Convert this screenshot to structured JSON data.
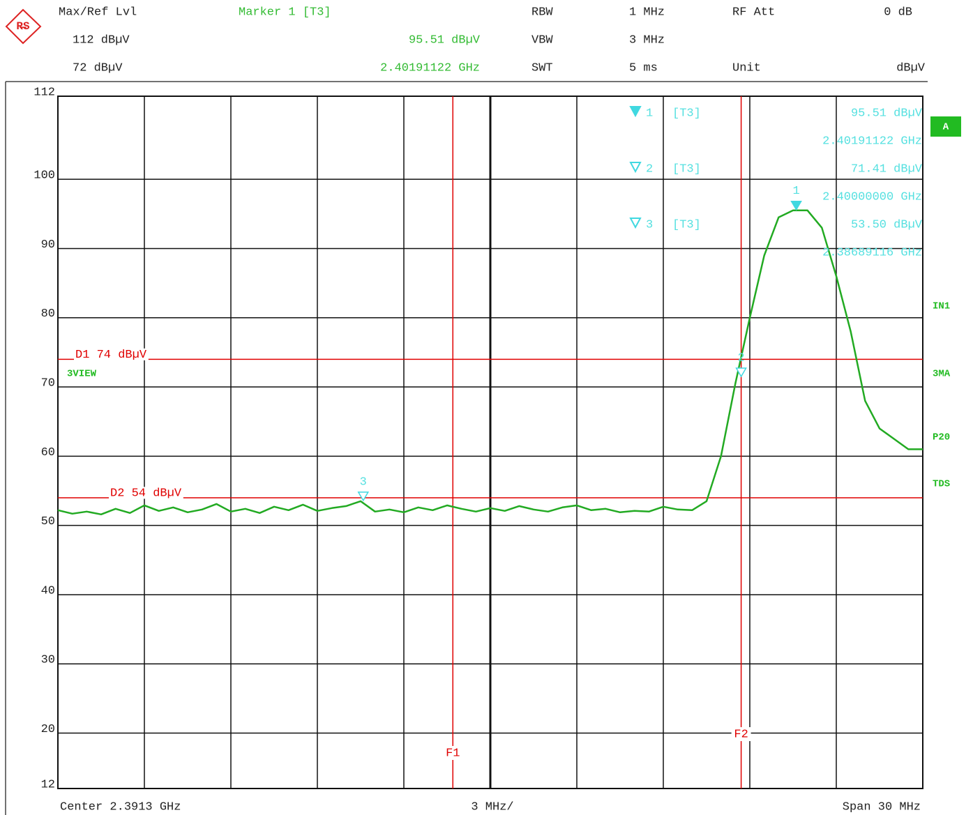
{
  "chart_data": {
    "type": "line",
    "header": {
      "ref_label": "Max/Ref Lvl",
      "marker_title": "Marker 1 [T3]",
      "rbw_label": "RBW",
      "rbw": "1 MHz",
      "att_label": "RF Att",
      "att": "0 dB",
      "ref_level": "112 dBµV",
      "marker_level": "95.51 dBµV",
      "vbw_label": "VBW",
      "vbw": "3 MHz",
      "offset": "72 dBµV",
      "marker_freq": "2.40191122 GHz",
      "swt_label": "SWT",
      "swt": "5 ms",
      "unit_label": "Unit",
      "unit": "dBµV"
    },
    "footer": {
      "center": "Center 2.3913 GHz",
      "div": "3 MHz/",
      "span": "Span 30 MHz"
    },
    "side_labels": [
      "IN1",
      "3MA",
      "P20",
      "TDS"
    ],
    "screen_label": "A",
    "view_label": "3VIEW",
    "x": [
      2.3763,
      2.3768,
      2.3773,
      2.3778,
      2.3783,
      2.3788,
      2.3793,
      2.3798,
      2.3803,
      2.3808,
      2.3813,
      2.3818,
      2.3823,
      2.3828,
      2.3833,
      2.3838,
      2.3843,
      2.3848,
      2.3853,
      2.3858,
      2.3863,
      2.3868,
      2.3873,
      2.3878,
      2.3883,
      2.3888,
      2.3893,
      2.3898,
      2.3903,
      2.3908,
      2.3913,
      2.3918,
      2.3923,
      2.3928,
      2.3933,
      2.3938,
      2.3943,
      2.3948,
      2.3953,
      2.3958,
      2.3963,
      2.3968,
      2.3973,
      2.3978,
      2.3983,
      2.3988,
      2.3993,
      2.3998,
      2.4003,
      2.4008,
      2.4013,
      2.4018,
      2.4023,
      2.4028,
      2.4033,
      2.4038,
      2.4043,
      2.4048,
      2.4053,
      2.4058,
      2.4063
    ],
    "values": [
      52.2,
      51.7,
      52.0,
      51.6,
      52.4,
      51.8,
      52.9,
      52.1,
      52.6,
      51.9,
      52.3,
      53.1,
      52.0,
      52.4,
      51.8,
      52.7,
      52.2,
      53.0,
      52.1,
      52.5,
      52.8,
      53.5,
      52.0,
      52.3,
      51.9,
      52.6,
      52.2,
      52.9,
      52.4,
      52.0,
      52.5,
      52.1,
      52.8,
      52.3,
      52.0,
      52.6,
      52.9,
      52.2,
      52.4,
      51.9,
      52.1,
      52.0,
      52.7,
      52.3,
      52.2,
      53.5,
      60,
      70.5,
      80,
      89,
      94.5,
      95.5,
      95.5,
      93,
      86,
      78,
      68,
      64,
      62.5,
      61,
      61
    ],
    "color": "#22aa22",
    "xlim": [
      2.3763,
      2.4063
    ],
    "xticks": [
      2.3763,
      2.3793,
      2.3823,
      2.3853,
      2.3883,
      2.3913,
      2.3943,
      2.3973,
      2.4003,
      2.4033,
      2.4063
    ],
    "ylim": [
      12,
      112
    ],
    "yticks": [
      12,
      20,
      30,
      40,
      50,
      60,
      70,
      80,
      90,
      100,
      112
    ],
    "grid": true,
    "markers": [
      {
        "number": "1",
        "trace": "[T3]",
        "level": 95.51,
        "level_label": "95.51 dBµV",
        "freq": 2.40191122,
        "freq_label": "2.40191122 GHz"
      },
      {
        "number": "2",
        "trace": "[T3]",
        "level": 71.41,
        "level_label": "71.41 dBµV",
        "freq": 2.4,
        "freq_label": "2.40000000 GHz"
      },
      {
        "number": "3",
        "trace": "[T3]",
        "level": 53.5,
        "level_label": "53.50 dBµV",
        "freq": 2.38689116,
        "freq_label": "2.38689116 GHz"
      }
    ],
    "display_lines": [
      {
        "label": "D1 74 dBµV",
        "value": 74
      },
      {
        "label": "D2 54 dBµV",
        "value": 54
      }
    ],
    "freq_lines": [
      {
        "label": "F1",
        "value": 2.39
      },
      {
        "label": "F2",
        "value": 2.4
      }
    ]
  }
}
